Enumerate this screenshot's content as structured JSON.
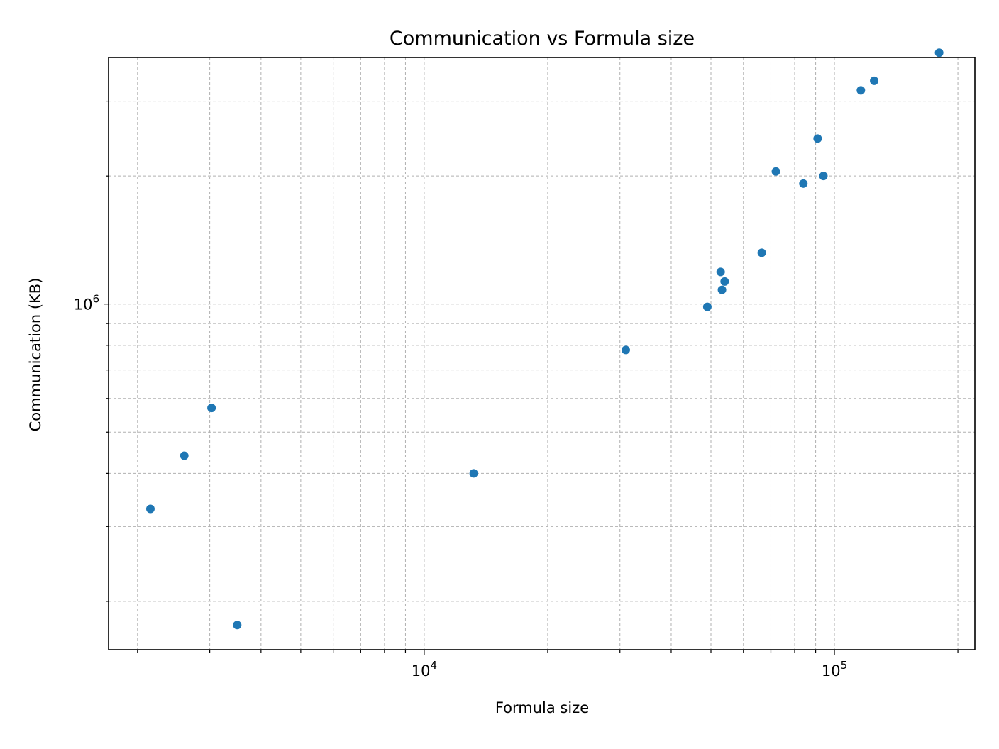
{
  "chart_data": {
    "type": "scatter",
    "title": "Communication vs Formula size",
    "xlabel": "Formula size",
    "ylabel": "Communication (KB)",
    "xscale": "log",
    "yscale": "log",
    "xlim": [
      1700,
      220000
    ],
    "ylim": [
      154000,
      3800000
    ],
    "grid": true,
    "legend": "none",
    "x_ticks": [
      {
        "value": 10000,
        "base": "10",
        "exp": "4"
      },
      {
        "value": 100000,
        "base": "10",
        "exp": "5"
      }
    ],
    "y_ticks": [
      {
        "value": 1000000,
        "base": "10",
        "exp": "6"
      }
    ],
    "marker_color": "#1f77b4",
    "points": [
      {
        "x": 2150,
        "y": 330000
      },
      {
        "x": 2600,
        "y": 440000
      },
      {
        "x": 3030,
        "y": 570000
      },
      {
        "x": 3500,
        "y": 176000
      },
      {
        "x": 13200,
        "y": 400000
      },
      {
        "x": 31000,
        "y": 780000
      },
      {
        "x": 49000,
        "y": 985000
      },
      {
        "x": 52800,
        "y": 1190000
      },
      {
        "x": 53200,
        "y": 1080000
      },
      {
        "x": 54000,
        "y": 1130000
      },
      {
        "x": 66500,
        "y": 1320000
      },
      {
        "x": 72000,
        "y": 2050000
      },
      {
        "x": 84000,
        "y": 1920000
      },
      {
        "x": 91000,
        "y": 2450000
      },
      {
        "x": 94000,
        "y": 2000000
      },
      {
        "x": 116000,
        "y": 3180000
      },
      {
        "x": 125000,
        "y": 3350000
      },
      {
        "x": 180000,
        "y": 3900000
      }
    ]
  }
}
